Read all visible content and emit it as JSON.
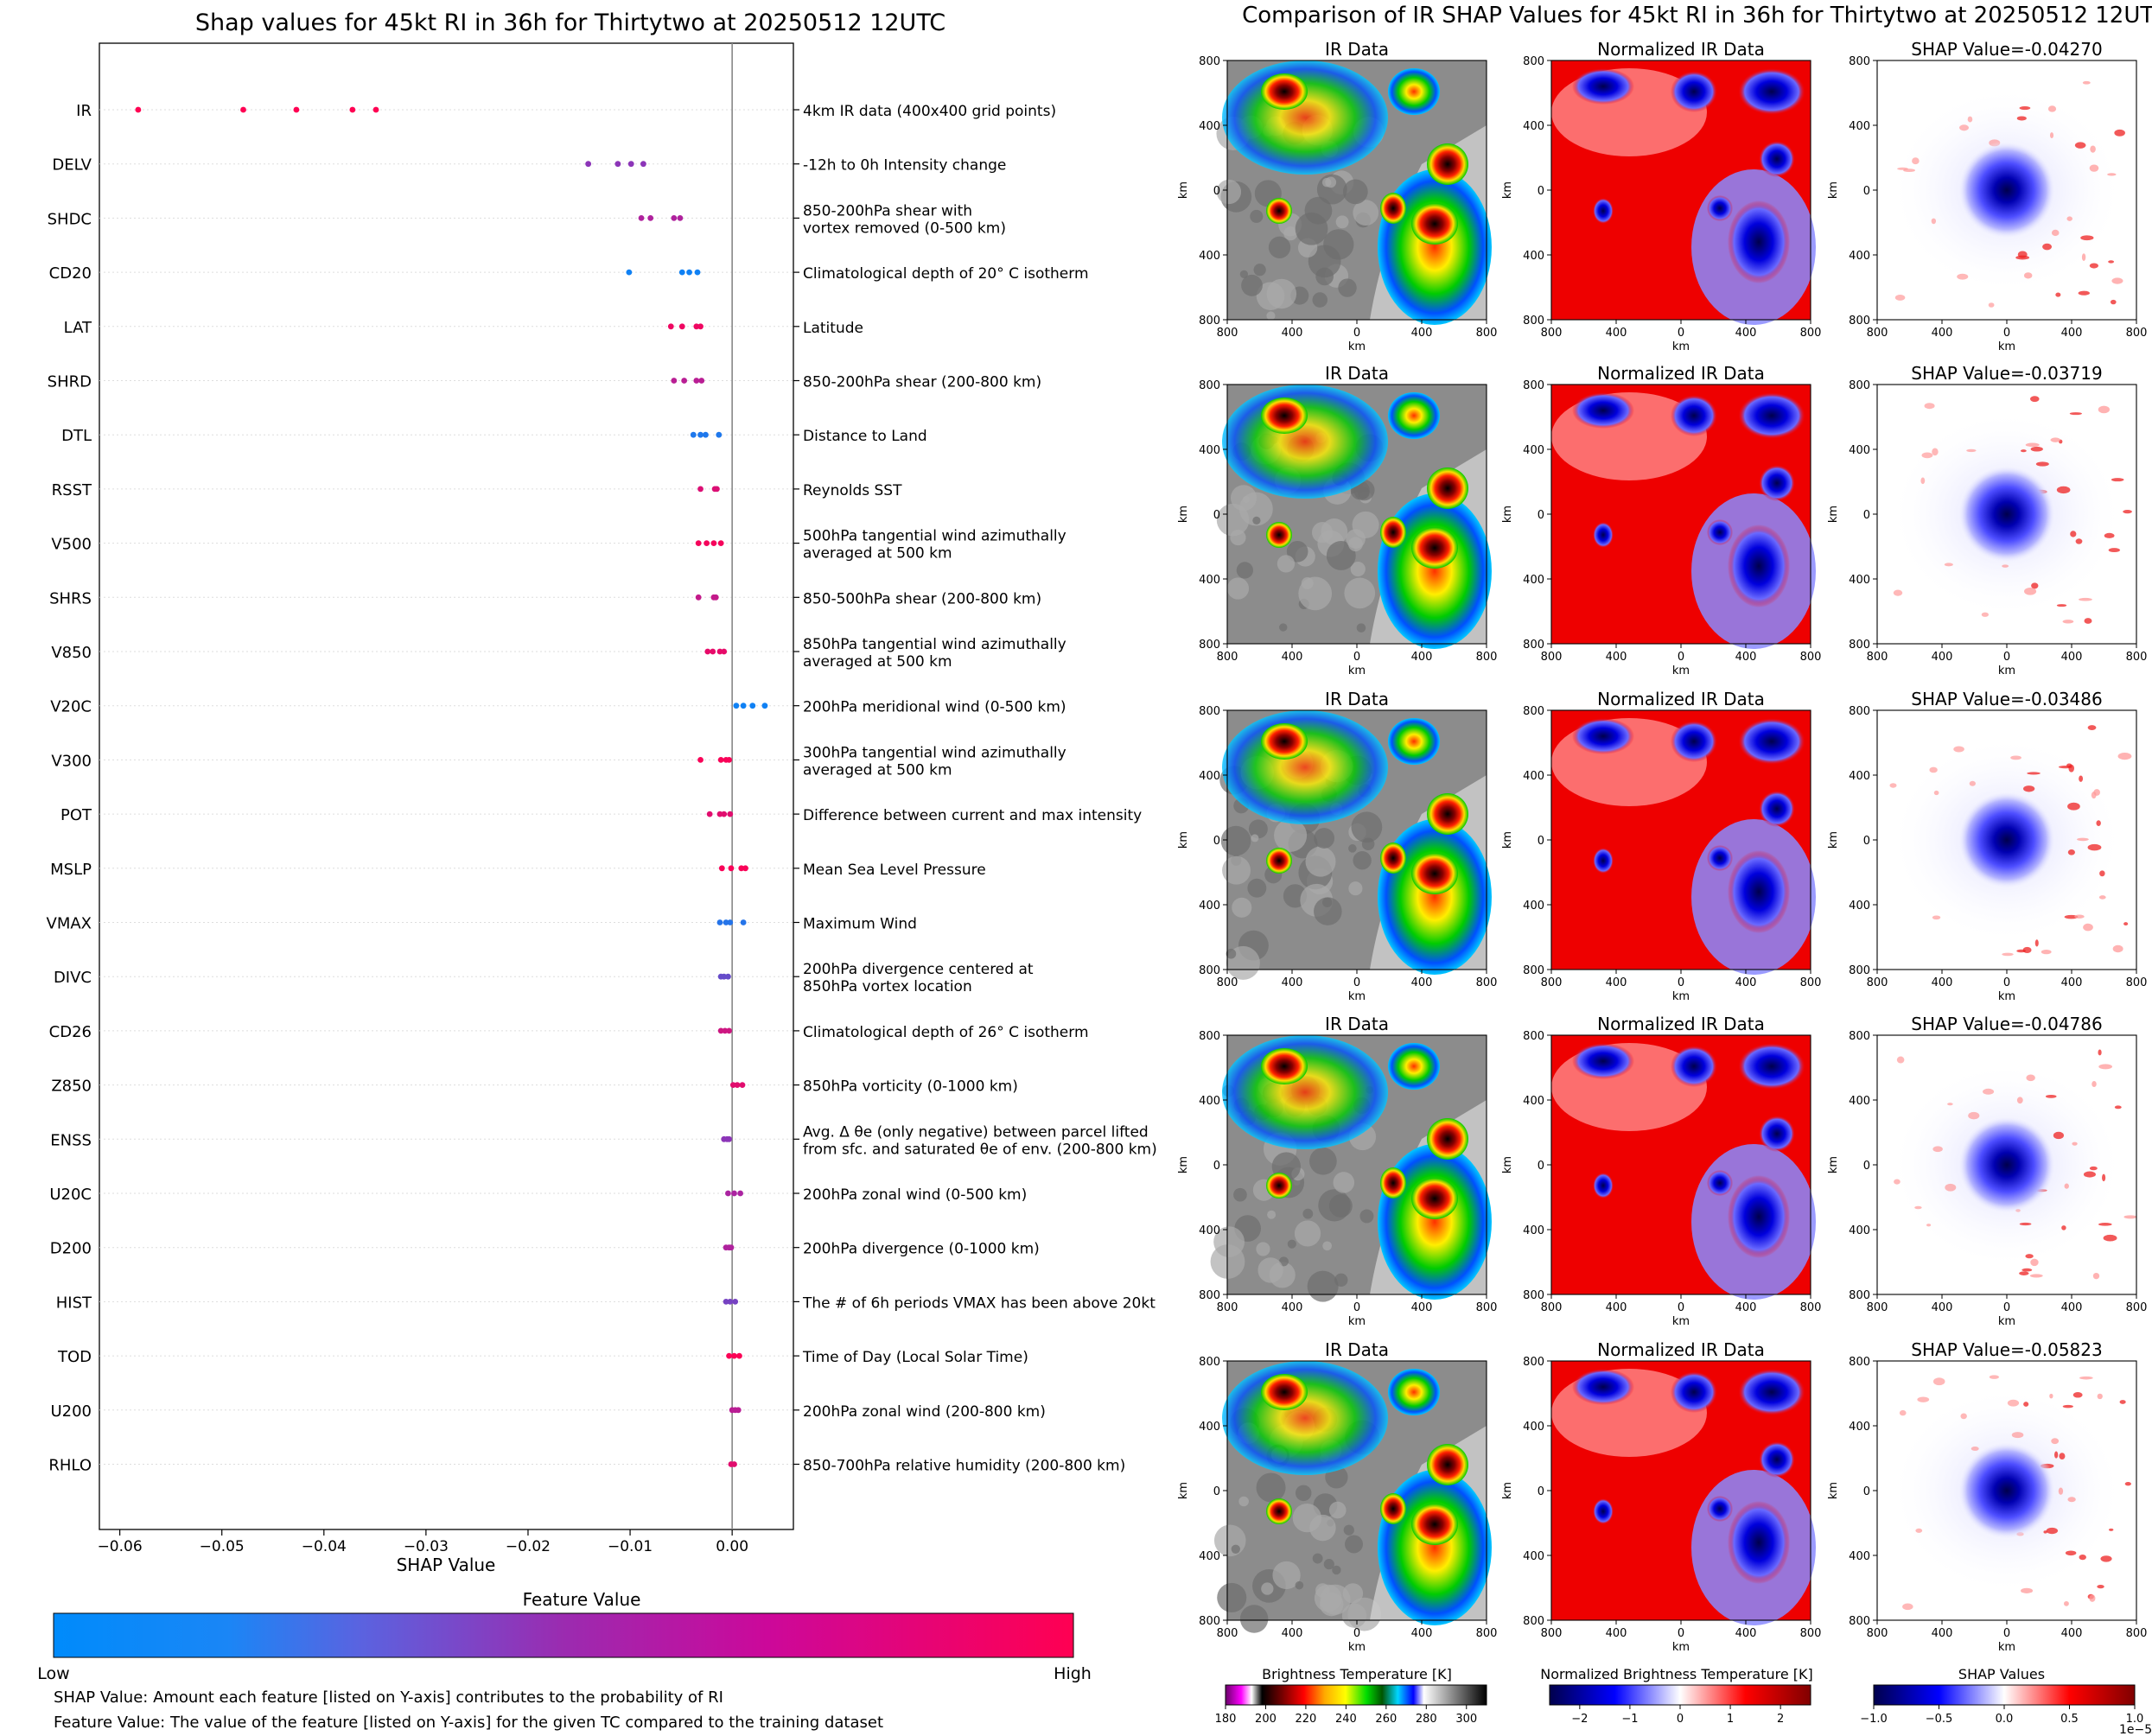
{
  "colors": {
    "shap_low": "#008bfb",
    "shap_mid": "#9b2bb0",
    "shap_high": "#ff0052"
  },
  "chart_data": [
    {
      "type": "scatter",
      "title": "Shap values for 45kt RI in 36h for Thirtytwo at 20250512 12UTC",
      "xlabel": "SHAP Value",
      "xlim": [
        -0.062,
        0.006
      ],
      "xticks": [
        "−0.06",
        "−0.05",
        "−0.04",
        "−0.03",
        "−0.02",
        "−0.01",
        "0.00"
      ],
      "xtick_values": [
        -0.06,
        -0.05,
        -0.04,
        -0.03,
        -0.02,
        -0.01,
        0.0
      ],
      "features": [
        {
          "name": "IR",
          "desc": [
            "4km IR data (400x400 grid points)"
          ],
          "shap": [
            -0.0582,
            -0.0479,
            -0.0427,
            -0.0372,
            -0.0349
          ],
          "fv": [
            1,
            1,
            1,
            1,
            1
          ]
        },
        {
          "name": "DELV",
          "desc": [
            "-12h to 0h Intensity change"
          ],
          "shap": [
            -0.0141,
            -0.0112,
            -0.0099,
            -0.0087
          ],
          "fv": [
            0.45,
            0.45,
            0.45,
            0.45
          ]
        },
        {
          "name": "SHDC",
          "desc": [
            "850-200hPa shear with",
            "vortex removed (0-500 km)"
          ],
          "shap": [
            -0.0089,
            -0.008,
            -0.0057,
            -0.0051
          ],
          "fv": [
            0.6,
            0.6,
            0.6,
            0.6
          ]
        },
        {
          "name": "CD20",
          "desc": [
            "Climatological depth of 20° C isotherm"
          ],
          "shap": [
            -0.0101,
            -0.0049,
            -0.0042,
            -0.0034
          ],
          "fv": [
            0.05,
            0.05,
            0.05,
            0.05
          ]
        },
        {
          "name": "LAT",
          "desc": [
            "Latitude"
          ],
          "shap": [
            -0.006,
            -0.0049,
            -0.0035,
            -0.0031
          ],
          "fv": [
            0.92,
            0.92,
            0.92,
            0.92
          ]
        },
        {
          "name": "SHRD",
          "desc": [
            "850-200hPa shear (200-800 km)"
          ],
          "shap": [
            -0.0057,
            -0.0047,
            -0.0035,
            -0.003
          ],
          "fv": [
            0.65,
            0.65,
            0.65,
            0.65
          ]
        },
        {
          "name": "DTL",
          "desc": [
            "Distance to Land"
          ],
          "shap": [
            -0.0038,
            -0.0031,
            -0.0026,
            -0.0013
          ],
          "fv": [
            0.1,
            0.1,
            0.1,
            0.1
          ]
        },
        {
          "name": "RSST",
          "desc": [
            "Reynolds SST"
          ],
          "shap": [
            -0.0031,
            -0.0017,
            -0.0015
          ],
          "fv": [
            0.82,
            0.82,
            0.82
          ]
        },
        {
          "name": "V500",
          "desc": [
            "500hPa tangential wind azimuthally",
            "averaged at 500 km"
          ],
          "shap": [
            -0.0033,
            -0.0025,
            -0.0018,
            -0.0011
          ],
          "fv": [
            0.95,
            0.95,
            0.95,
            0.95
          ]
        },
        {
          "name": "SHRS",
          "desc": [
            "850-500hPa shear (200-800 km)"
          ],
          "shap": [
            -0.0033,
            -0.0018,
            -0.0016
          ],
          "fv": [
            0.7,
            0.7,
            0.7
          ]
        },
        {
          "name": "V850",
          "desc": [
            "850hPa tangential wind azimuthally",
            "averaged at 500 km"
          ],
          "shap": [
            -0.0024,
            -0.0019,
            -0.0012,
            -0.0008
          ],
          "fv": [
            0.88,
            0.88,
            0.88,
            0.88
          ]
        },
        {
          "name": "V20C",
          "desc": [
            "200hPa meridional wind (0-500 km)"
          ],
          "shap": [
            0.0004,
            0.0011,
            0.002,
            0.0032
          ],
          "fv": [
            0.05,
            0.05,
            0.05,
            0.05
          ]
        },
        {
          "name": "V300",
          "desc": [
            "300hPa tangential wind azimuthally",
            "averaged at 500 km"
          ],
          "shap": [
            -0.0031,
            -0.0011,
            -0.0006,
            -0.0003
          ],
          "fv": [
            0.97,
            0.97,
            0.97,
            0.97
          ]
        },
        {
          "name": "POT",
          "desc": [
            "Difference between current and max intensity"
          ],
          "shap": [
            -0.0022,
            -0.0012,
            -0.0008,
            -0.0002
          ],
          "fv": [
            0.85,
            0.85,
            0.85,
            0.85
          ]
        },
        {
          "name": "MSLP",
          "desc": [
            "Mean Sea Level Pressure"
          ],
          "shap": [
            -0.001,
            -0.0001,
            0.0009,
            0.0013
          ],
          "fv": [
            0.97,
            0.97,
            0.97,
            0.97
          ]
        },
        {
          "name": "VMAX",
          "desc": [
            "Maximum Wind"
          ],
          "shap": [
            -0.0012,
            -0.0006,
            -0.0002,
            0.0011
          ],
          "fv": [
            0.12,
            0.12,
            0.12,
            0.12
          ]
        },
        {
          "name": "DIVC",
          "desc": [
            "200hPa divergence centered at",
            "850hPa vortex location"
          ],
          "shap": [
            -0.0011,
            -0.0008,
            -0.0004
          ],
          "fv": [
            0.33,
            0.33,
            0.33
          ]
        },
        {
          "name": "CD26",
          "desc": [
            "Climatological depth of 26° C isotherm"
          ],
          "shap": [
            -0.0011,
            -0.0007,
            -0.0003
          ],
          "fv": [
            0.75,
            0.75,
            0.75
          ]
        },
        {
          "name": "Z850",
          "desc": [
            "850hPa vorticity (0-1000 km)"
          ],
          "shap": [
            0.0001,
            0.0005,
            0.001
          ],
          "fv": [
            0.85,
            0.85,
            0.85
          ]
        },
        {
          "name": "ENSS",
          "desc": [
            "Avg. Δ θe (only negative) between parcel lifted",
            "from sfc. and saturated θe of env. (200-800 km)"
          ],
          "shap": [
            -0.0008,
            -0.0005,
            -0.0003
          ],
          "fv": [
            0.45,
            0.45,
            0.45
          ]
        },
        {
          "name": "U20C",
          "desc": [
            "200hPa zonal wind (0-500 km)"
          ],
          "shap": [
            -0.0004,
            0.0002,
            0.0008
          ],
          "fv": [
            0.58,
            0.58,
            0.58
          ]
        },
        {
          "name": "D200",
          "desc": [
            "200hPa divergence (0-1000 km)"
          ],
          "shap": [
            -0.0006,
            -0.0003,
            -0.0001
          ],
          "fv": [
            0.6,
            0.6,
            0.6
          ]
        },
        {
          "name": "HIST",
          "desc": [
            "The # of 6h periods VMAX has been above 20kt"
          ],
          "shap": [
            -0.0006,
            -0.0002,
            0.0003
          ],
          "fv": [
            0.38,
            0.38,
            0.38
          ]
        },
        {
          "name": "TOD",
          "desc": [
            "Time of Day (Local Solar Time)"
          ],
          "shap": [
            -0.0003,
            0.0002,
            0.0007
          ],
          "fv": [
            0.98,
            0.98,
            0.98
          ]
        },
        {
          "name": "U200",
          "desc": [
            "200hPa zonal wind (200-800 km)"
          ],
          "shap": [
            0.0,
            0.0003,
            0.0006
          ],
          "fv": [
            0.65,
            0.65,
            0.65
          ]
        },
        {
          "name": "RHLO",
          "desc": [
            "850-700hPa relative humidity (200-800 km)"
          ],
          "shap": [
            -0.0001,
            0.0002
          ],
          "fv": [
            0.85,
            0.85
          ]
        }
      ],
      "colorbar": {
        "title": "Feature Value",
        "low": "Low",
        "high": "High"
      },
      "notes": [
        "SHAP Value: Amount each feature [listed on Y-axis] contributes to the probability of RI",
        "Feature Value: The value of the feature [listed on Y-axis] for the given TC compared to the training dataset"
      ]
    },
    {
      "type": "heatmap",
      "title": "Comparison of IR SHAP Values for 45kt RI in 36h for Thirtytwo at 20250512 12UTC",
      "column_titles": [
        "IR Data",
        "Normalized IR Data"
      ],
      "shap_titles": [
        "SHAP Value=-0.04270",
        "SHAP Value=-0.03719",
        "SHAP Value=-0.03486",
        "SHAP Value=-0.04786",
        "SHAP Value=-0.05823"
      ],
      "axis_label": "km",
      "axis_ticks": [
        "800",
        "400",
        "0",
        "400",
        "800"
      ],
      "colorbars": [
        {
          "title": "Brightness Temperature [K]",
          "ticks": [
            "180",
            "200",
            "220",
            "240",
            "260",
            "280",
            "300"
          ],
          "range": [
            180,
            310
          ]
        },
        {
          "title": "Normalized Brightness Temperature [K]",
          "ticks": [
            "−2",
            "−1",
            "0",
            "1",
            "2"
          ],
          "range": [
            -2.6,
            2.6
          ]
        },
        {
          "title": "SHAP Values",
          "ticks": [
            "−1.0",
            "−0.5",
            "0.0",
            "0.5",
            "1.0"
          ],
          "range": [
            -1.0,
            1.0
          ],
          "offset_label": "1e−5"
        }
      ]
    }
  ]
}
